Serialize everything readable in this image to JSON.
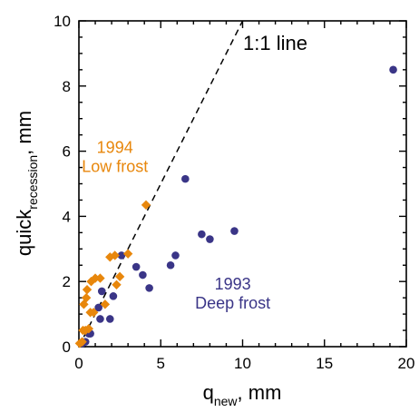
{
  "chart_data": {
    "type": "scatter",
    "xlabel": {
      "main": "q",
      "sub": "new",
      "suffix": ", mm"
    },
    "ylabel": {
      "main": "quick",
      "sub": "recession",
      "suffix": ", mm"
    },
    "xlim": [
      0,
      20
    ],
    "ylim": [
      0,
      10
    ],
    "xticks": [
      0,
      5,
      10,
      15,
      20
    ],
    "yticks": [
      0,
      2,
      4,
      6,
      8,
      10
    ],
    "grid": false,
    "reference_line": {
      "label": "1:1 line",
      "slope": 1,
      "style": "dashed"
    },
    "annotations": [
      {
        "lines": [
          "1994",
          "Low frost"
        ],
        "color": "#e8870c",
        "x": 2.2,
        "y": 5.95
      },
      {
        "lines": [
          "1993",
          "Deep frost"
        ],
        "color": "#3a3587",
        "x": 9.4,
        "y": 1.75
      }
    ],
    "series": [
      {
        "name": "1993 Deep frost",
        "marker": "circle",
        "color": "#3a3587",
        "points": [
          [
            0.2,
            0.1
          ],
          [
            0.4,
            0.15
          ],
          [
            0.6,
            0.4
          ],
          [
            0.7,
            0.4
          ],
          [
            1.2,
            1.2
          ],
          [
            1.3,
            0.85
          ],
          [
            1.4,
            1.7
          ],
          [
            1.9,
            0.85
          ],
          [
            2.1,
            1.55
          ],
          [
            2.6,
            2.8
          ],
          [
            3.5,
            2.45
          ],
          [
            3.9,
            2.2
          ],
          [
            4.3,
            1.8
          ],
          [
            5.6,
            2.5
          ],
          [
            5.9,
            2.8
          ],
          [
            6.5,
            5.15
          ],
          [
            7.5,
            3.45
          ],
          [
            8.0,
            3.3
          ],
          [
            9.5,
            3.55
          ],
          [
            19.2,
            8.5
          ]
        ]
      },
      {
        "name": "1994 Low frost",
        "marker": "diamond",
        "color": "#e8870c",
        "points": [
          [
            0.05,
            0.1
          ],
          [
            0.2,
            0.15
          ],
          [
            0.25,
            0.5
          ],
          [
            0.3,
            1.3
          ],
          [
            0.4,
            0.5
          ],
          [
            0.45,
            1.5
          ],
          [
            0.5,
            1.75
          ],
          [
            0.6,
            0.55
          ],
          [
            0.7,
            1.05
          ],
          [
            0.75,
            2.0
          ],
          [
            0.9,
            1.05
          ],
          [
            1.0,
            2.1
          ],
          [
            1.3,
            2.1
          ],
          [
            1.6,
            1.3
          ],
          [
            1.9,
            2.75
          ],
          [
            2.2,
            2.8
          ],
          [
            2.3,
            1.9
          ],
          [
            2.5,
            2.15
          ],
          [
            3.0,
            2.85
          ],
          [
            4.1,
            4.35
          ]
        ]
      }
    ]
  }
}
